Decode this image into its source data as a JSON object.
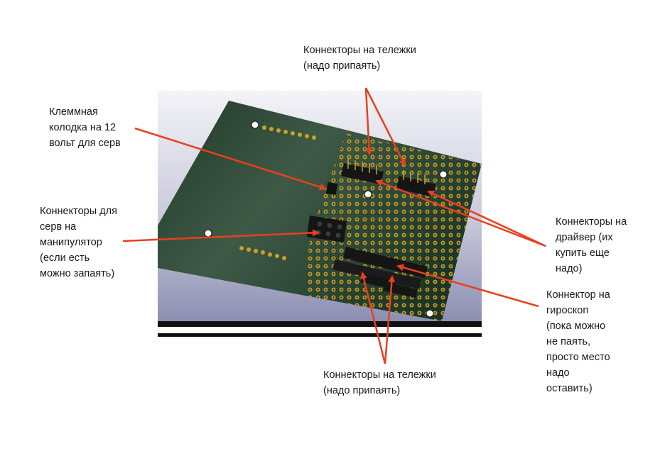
{
  "annotations": {
    "top_carts": "Коннекторы на тележки\n(надо припаять)",
    "terminal_block": "Клеммная\nколодка на 12\nвольт для серв",
    "servo_connectors": "Коннекторы для\nсерв на\nманипулятор\n(если есть\nможно запаять)",
    "driver_connectors": "Коннекторы на\nдрайвер (их\nкупить еще\nнадо)",
    "gyro_connector": "Коннектор на\nгироскоп\n(пока можно\nне паять,\nпросто место\nнадо\nоставить)",
    "bottom_carts": "Коннекторы на тележки\n(надо припаять)"
  },
  "colors": {
    "arrow": "#e8401e",
    "board": "#22402b",
    "pad": "#c9a227",
    "background": "#ffffff"
  }
}
